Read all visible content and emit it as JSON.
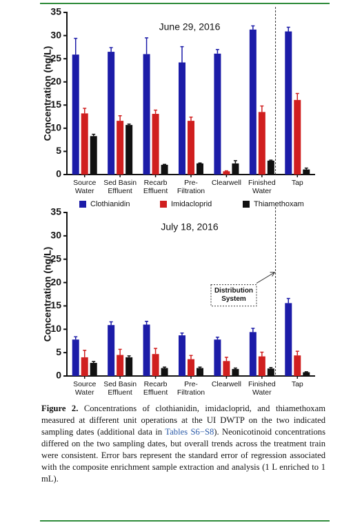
{
  "chart_data": [
    {
      "type": "bar",
      "title": "June 29, 2016",
      "ylabel": "Concentration (ng/L)",
      "categories": [
        [
          "Source",
          "Water"
        ],
        [
          "Sed Basin",
          "Effluent"
        ],
        [
          "Recarb",
          "Effluent"
        ],
        [
          "Pre-",
          "Filtration"
        ],
        [
          "Clearwell"
        ],
        [
          "Finished",
          "Water"
        ],
        [
          "Tap"
        ]
      ],
      "series": [
        {
          "name": "Clothianidin",
          "color": "#1c1ca8",
          "values": [
            25.9,
            26.5,
            26.0,
            24.2,
            26.1,
            31.3,
            30.9
          ],
          "errors": [
            3.5,
            0.9,
            3.5,
            3.4,
            0.9,
            0.8,
            0.9
          ]
        },
        {
          "name": "Imidacloprid",
          "color": "#d01f1f",
          "values": [
            13.2,
            11.6,
            13.1,
            11.6,
            0.7,
            13.5,
            16.1
          ],
          "errors": [
            1.1,
            1.1,
            0.8,
            0.8,
            0.1,
            1.3,
            1.4
          ]
        },
        {
          "name": "Thiamethoxam",
          "color": "#111111",
          "values": [
            8.3,
            10.7,
            2.1,
            2.4,
            2.4,
            3.0,
            1.1
          ],
          "errors": [
            0.4,
            0.2,
            0.1,
            0.1,
            0.6,
            0.1,
            0.3
          ]
        }
      ],
      "ylim": [
        0,
        35
      ],
      "yticks": [
        0,
        5,
        10,
        15,
        20,
        25,
        30,
        35
      ]
    },
    {
      "type": "bar",
      "title": "July 18, 2016",
      "ylabel": "Concentration (ng/L)",
      "categories": [
        [
          "Source",
          "Water"
        ],
        [
          "Sed Basin",
          "Effluent"
        ],
        [
          "Recarb",
          "Effluent"
        ],
        [
          "Pre-",
          "Filtration"
        ],
        [
          "Clearwell"
        ],
        [
          "Finished",
          "Water"
        ],
        [
          "Tap"
        ]
      ],
      "series": [
        {
          "color": "#1c1ca8",
          "values": [
            7.8,
            10.9,
            11.0,
            8.7,
            7.8,
            9.4,
            15.6
          ],
          "errors": [
            0.6,
            0.7,
            0.7,
            0.5,
            0.5,
            0.8,
            1.0
          ]
        },
        {
          "color": "#d01f1f",
          "values": [
            4.0,
            4.5,
            4.7,
            3.6,
            3.2,
            4.2,
            4.4
          ],
          "errors": [
            1.5,
            1.2,
            1.2,
            0.8,
            0.8,
            0.9,
            0.9
          ]
        },
        {
          "color": "#111111",
          "values": [
            2.8,
            4.0,
            1.7,
            1.7,
            1.5,
            1.6,
            0.8
          ],
          "errors": [
            0.3,
            0.3,
            0.2,
            0.2,
            0.2,
            0.2,
            0.1
          ]
        }
      ],
      "ylim": [
        0,
        35
      ],
      "yticks": [
        0,
        5,
        10,
        15,
        20,
        25,
        30,
        35
      ],
      "annotation": [
        "Distribution",
        "System"
      ]
    }
  ],
  "caption": {
    "label": "Figure 2.",
    "text_before": " Concentrations of clothianidin, imidacloprid, and thiamethoxam measured at different unit operations at the UI DWTP on the two indicated sampling dates (additional data in ",
    "link": "Tables S6−S8",
    "text_after": "). Neonicotinoid concentrations differed on the two sampling dates, but overall trends across the treatment train were consistent. Error bars represent the standard error of regression associated with the composite enrichment sample extraction and analysis (1 L enriched to 1 mL)."
  }
}
